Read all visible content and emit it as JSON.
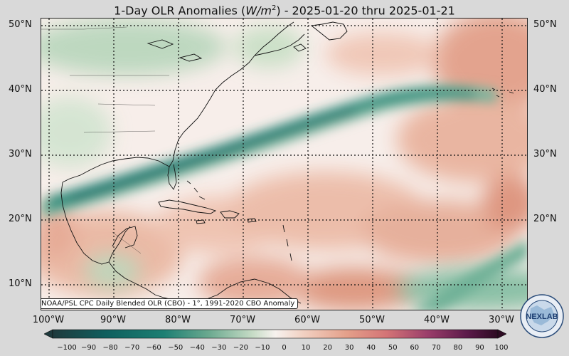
{
  "title": {
    "prefix": "1-Day OLR Anomalies (",
    "unit_W": "W/m",
    "unit_exp": "2",
    "suffix": ") - 2025-01-20 thru 2025-01-21"
  },
  "credit": "NOAA/PSL CPC Daily Blended OLR (CBO) - 1°, 1991-2020 CBO Anomaly",
  "lat_labels": [
    "50°N",
    "40°N",
    "30°N",
    "20°N",
    "10°N"
  ],
  "lon_labels": [
    "100°W",
    "90°W",
    "80°W",
    "70°W",
    "60°W",
    "50°W",
    "40°W",
    "30°W"
  ],
  "colorbar": {
    "ticks": [
      "−100",
      "−90",
      "−80",
      "−70",
      "−60",
      "−50",
      "−40",
      "−30",
      "−20",
      "−10",
      "0",
      "10",
      "20",
      "30",
      "40",
      "50",
      "60",
      "70",
      "80",
      "90",
      "100"
    ],
    "colors": {
      "negative_extreme": "#1f3a3d",
      "negative_strong": "#0f6e68",
      "negative_mid": "#3f9b83",
      "negative_light": "#a9cfae",
      "neutral": "#f7f2ef",
      "positive_light": "#efc1ae",
      "positive_mid": "#dc8a72",
      "positive_strong": "#c0566a",
      "positive_extreme": "#2d0a22"
    }
  },
  "logo_text": "NEXLAB",
  "icons": {
    "logo": "nexlab-globe-logo"
  }
}
